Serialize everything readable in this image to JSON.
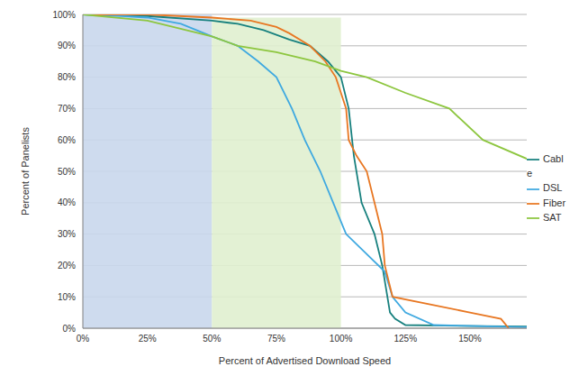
{
  "chart_data": {
    "type": "line",
    "x_label": "Percent of Advertised Download Speed",
    "y_label": "Percent of Panelists",
    "xlim": [
      0,
      172
    ],
    "ylim": [
      0,
      100
    ],
    "xticks": [
      {
        "value": 0,
        "label": "0%"
      },
      {
        "value": 25,
        "label": "25%"
      },
      {
        "value": 50,
        "label": "50%"
      },
      {
        "value": 75,
        "label": "75%"
      },
      {
        "value": 100,
        "label": "100%"
      },
      {
        "value": 125,
        "label": "125%"
      },
      {
        "value": 150,
        "label": "150%"
      }
    ],
    "yticks": [
      {
        "value": 0,
        "label": "0%"
      },
      {
        "value": 10,
        "label": "10%"
      },
      {
        "value": 20,
        "label": "20%"
      },
      {
        "value": 30,
        "label": "30%"
      },
      {
        "value": 40,
        "label": "40%"
      },
      {
        "value": 50,
        "label": "50%"
      },
      {
        "value": 60,
        "label": "60%"
      },
      {
        "value": 70,
        "label": "70%"
      },
      {
        "value": 80,
        "label": "80%"
      },
      {
        "value": 90,
        "label": "90%"
      },
      {
        "value": 100,
        "label": "100%"
      }
    ],
    "grid": true,
    "legend": "right",
    "marker": "none",
    "line_style": "solid",
    "bands": [
      {
        "xlim": [
          0,
          50
        ],
        "ylim": [
          0,
          100
        ],
        "color": "#c9d7ec"
      },
      {
        "xlim": [
          50,
          100
        ],
        "ylim": [
          0,
          99
        ],
        "color": "#e0f0cf"
      }
    ],
    "series": [
      {
        "name": "Cable",
        "color": "#17807e",
        "x": [
          0,
          25,
          50,
          60,
          70,
          80,
          88,
          95,
          100,
          103,
          105,
          108,
          113,
          116,
          118,
          119,
          121,
          125,
          140,
          172
        ],
        "values": [
          100,
          99.5,
          98,
          97,
          95,
          92,
          90,
          85,
          80,
          70,
          55,
          40,
          30,
          20,
          10,
          5,
          3,
          1,
          0.8,
          0.5
        ]
      },
      {
        "name": "DSL",
        "color": "#3fa9e0",
        "x": [
          0,
          15,
          25,
          38,
          50,
          60,
          68,
          75,
          81,
          86,
          92,
          97,
          102,
          117,
          120,
          125,
          136,
          172
        ],
        "values": [
          100,
          99.5,
          99,
          97,
          93,
          90,
          85,
          80,
          70,
          60,
          50,
          40,
          30,
          18,
          10,
          5,
          1,
          0.3
        ]
      },
      {
        "name": "Fiber",
        "color": "#e87722",
        "x": [
          0,
          25,
          50,
          65,
          75,
          80,
          88,
          94,
          98,
          100,
          102,
          103,
          106,
          110,
          113,
          116,
          117,
          120,
          150,
          162,
          165
        ],
        "values": [
          100,
          100,
          99,
          98,
          96,
          94,
          90,
          85,
          80,
          75,
          70,
          60,
          55,
          50,
          40,
          30,
          20,
          10,
          5,
          3,
          0
        ]
      },
      {
        "name": "SAT",
        "color": "#8dc63f",
        "x": [
          0,
          25,
          40,
          50,
          60,
          75,
          90,
          100,
          110,
          125,
          142,
          155,
          172
        ],
        "values": [
          100,
          98,
          95,
          93,
          90,
          88,
          85,
          82,
          80,
          75,
          70,
          60,
          54
        ]
      }
    ]
  }
}
